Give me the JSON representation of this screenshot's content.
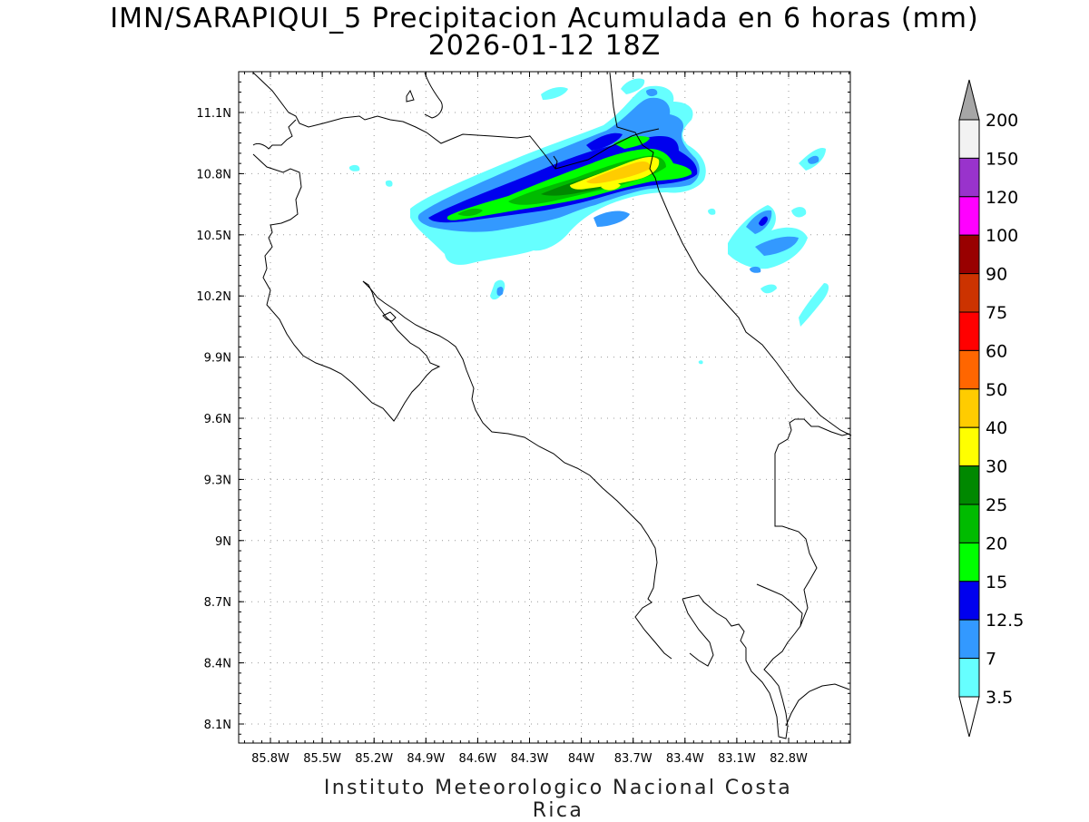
{
  "title": {
    "line1": "IMN/SARAPIQUI_5 Precipitacion Acumulada en 6 horas (mm)",
    "line2": "2026-01-12 18Z"
  },
  "footer": "Instituto Meteorologico Nacional Costa Rica",
  "map": {
    "lat_ticks": [
      "11.1N",
      "10.8N",
      "10.5N",
      "10.2N",
      "9.9N",
      "9.6N",
      "9.3N",
      "9N",
      "8.7N",
      "8.4N",
      "8.1N"
    ],
    "lon_ticks": [
      "85.8W",
      "85.5W",
      "85.2W",
      "84.9W",
      "84.6W",
      "84.3W",
      "84W",
      "83.7W",
      "83.4W",
      "83.1W",
      "82.8W"
    ],
    "lat_values": [
      11.1,
      10.8,
      10.5,
      10.2,
      9.9,
      9.6,
      9.3,
      9.0,
      8.7,
      8.4,
      8.1
    ],
    "lon_values": [
      -85.8,
      -85.5,
      -85.2,
      -84.9,
      -84.6,
      -84.3,
      -84.0,
      -83.7,
      -83.4,
      -83.1,
      -82.8
    ],
    "extent": {
      "lon_min": -86.0,
      "lon_max": -82.5,
      "lat_min": 8.0,
      "lat_max": 11.2
    },
    "grid": "dotted"
  },
  "colorbar": {
    "labels": [
      "200",
      "150",
      "120",
      "100",
      "90",
      "75",
      "60",
      "50",
      "40",
      "30",
      "25",
      "20",
      "15",
      "12.5",
      "7",
      "3.5"
    ],
    "colors": [
      "#f2f2f2",
      "#9933cc",
      "#ff00ff",
      "#990000",
      "#cc3300",
      "#ff0000",
      "#ff6600",
      "#ffcc00",
      "#ffff00",
      "#008800",
      "#00bb00",
      "#00ff00",
      "#0000ee",
      "#3399ff",
      "#66ffff"
    ],
    "top_arrow_color": "#a6a6a6",
    "bottom_arrow_color": "#ffffff"
  }
}
